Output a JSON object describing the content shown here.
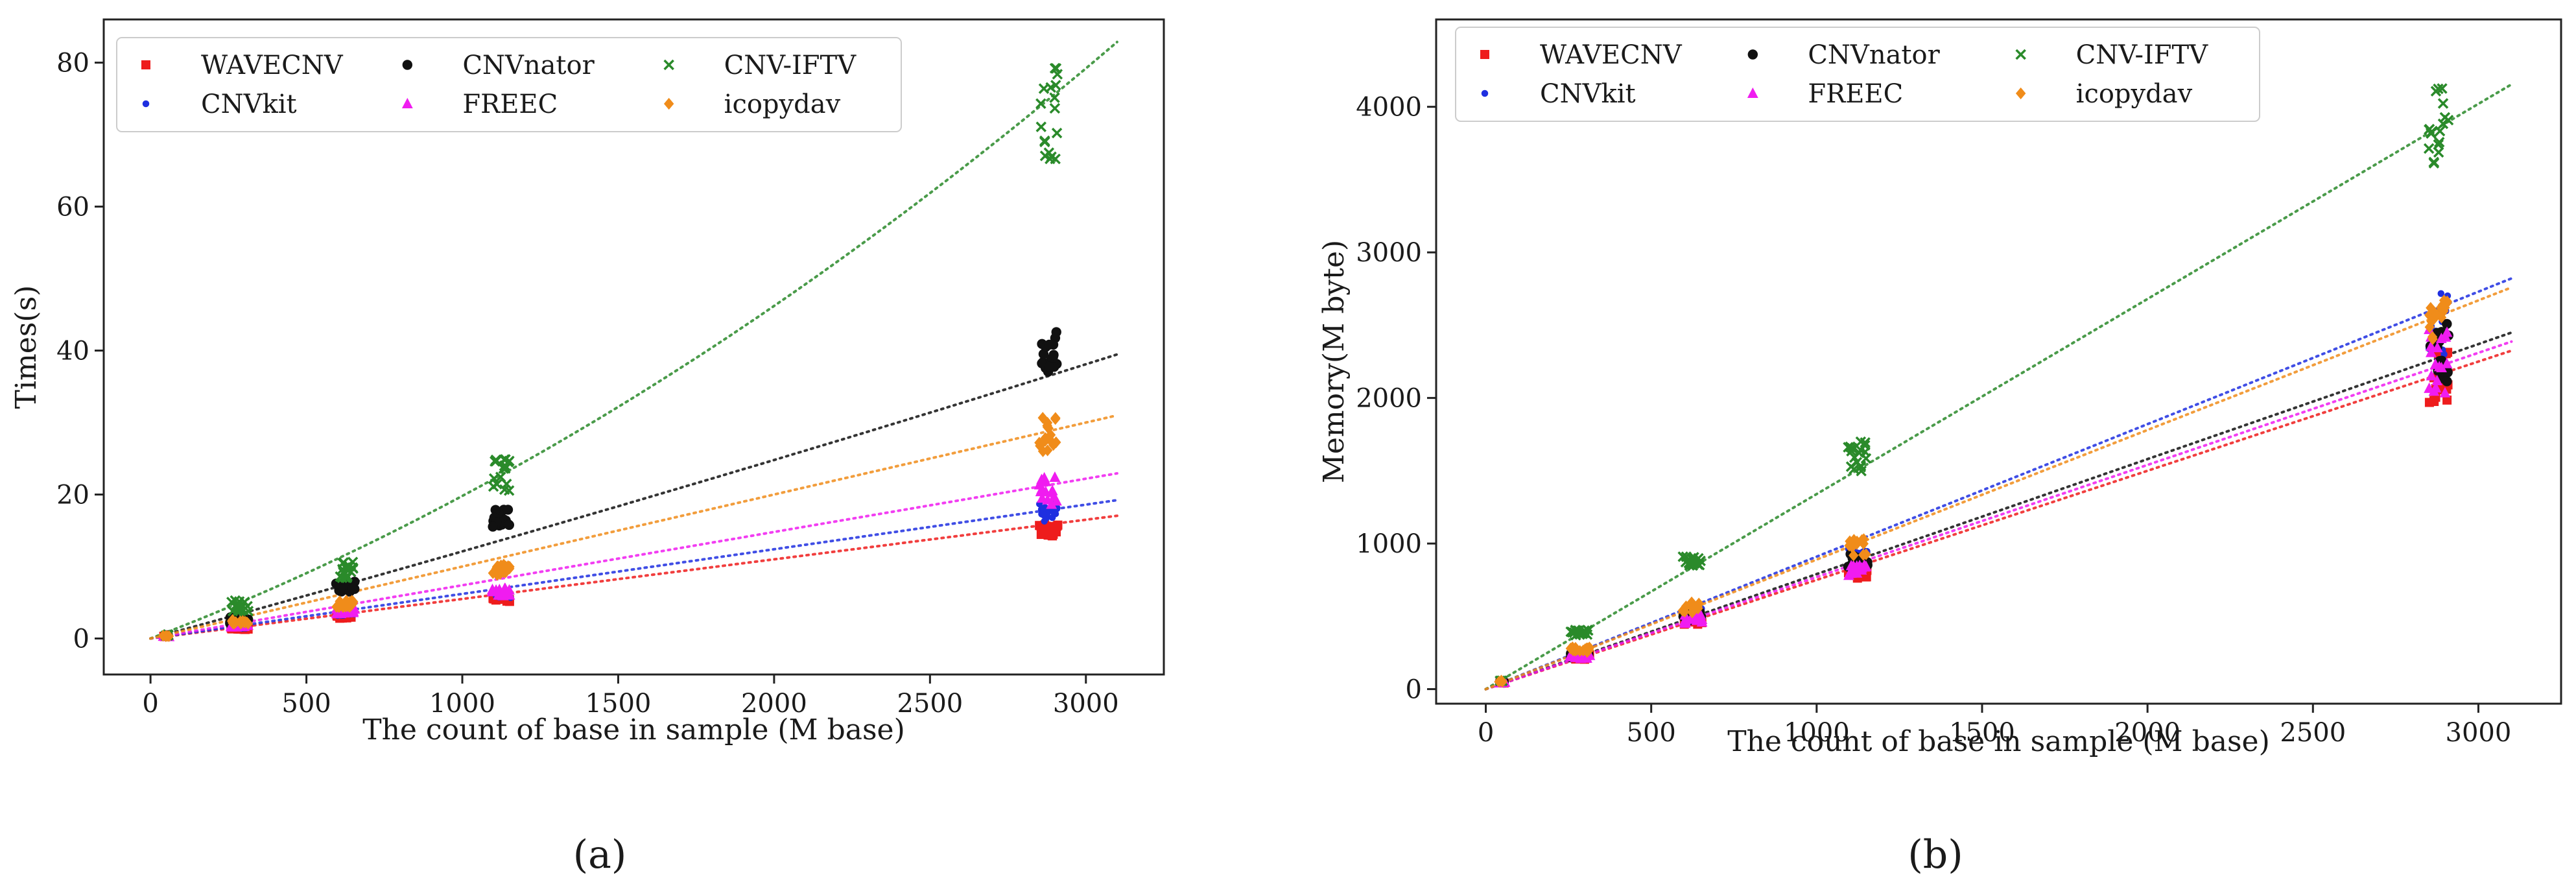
{
  "figure": {
    "panel_labels": [
      "(a)",
      "(b)"
    ]
  },
  "chart_data": [
    {
      "type": "scatter",
      "panel": "a",
      "title": "",
      "xlabel": "The count of base in sample (M base)",
      "ylabel": "Times(s)",
      "xlim": [
        -150,
        3250
      ],
      "ylim": [
        -5,
        86
      ],
      "xticks": [
        0,
        500,
        1000,
        1500,
        2000,
        2500,
        3000
      ],
      "yticks": [
        0,
        20,
        40,
        60,
        80
      ],
      "grid": false,
      "legend_position": "top-left",
      "legend_ncol": 3,
      "x_groups": [
        50,
        285,
        625,
        1125,
        2880
      ],
      "series": [
        {
          "name": "WAVECNV",
          "color": "#ee1c1c",
          "marker": "square",
          "values": [
            0.3,
            1.4,
            3.0,
            5.5,
            15.0
          ],
          "spread": [
            0.05,
            0.15,
            0.3,
            0.4,
            0.8
          ],
          "trend": [
            0.0055,
            0.0
          ]
        },
        {
          "name": "CNVkit",
          "color": "#1f2fe0",
          "marker": "point",
          "values": [
            0.3,
            1.6,
            3.5,
            6.0,
            17.5
          ],
          "spread": [
            0.05,
            0.2,
            0.4,
            0.5,
            1.2
          ],
          "trend": [
            0.0062,
            0.0
          ]
        },
        {
          "name": "CNVnator",
          "color": "#111111",
          "marker": "circle",
          "values": [
            0.4,
            2.5,
            7.5,
            16.5,
            40.0
          ],
          "spread": [
            0.1,
            0.5,
            1.0,
            1.5,
            3.5
          ],
          "trend": [
            0.0118,
            3e-07
          ]
        },
        {
          "name": "FREEC",
          "color": "#f01cf0",
          "marker": "triangle",
          "values": [
            0.3,
            1.8,
            3.8,
            6.5,
            20.5
          ],
          "spread": [
            0.05,
            0.2,
            0.4,
            0.6,
            2.0
          ],
          "trend": [
            0.0074,
            0.0
          ]
        },
        {
          "name": "CNV-IFTV",
          "color": "#2a8a2a",
          "marker": "x",
          "values": [
            0.5,
            4.5,
            9.5,
            22.5,
            73.0
          ],
          "spread": [
            0.1,
            0.8,
            1.2,
            2.5,
            6.5
          ],
          "trend": [
            0.0165,
            3.3e-06
          ]
        },
        {
          "name": "icopydav",
          "color": "#f08c1a",
          "marker": "diamond",
          "values": [
            0.4,
            2.3,
            4.8,
            9.5,
            28.5
          ],
          "spread": [
            0.1,
            0.3,
            0.5,
            0.8,
            2.5
          ],
          "trend": [
            0.01,
            0.0
          ]
        }
      ]
    },
    {
      "type": "scatter",
      "panel": "b",
      "title": "",
      "xlabel": "The count of base in sample (M base)",
      "ylabel": "Memory(M byte)",
      "xlim": [
        -150,
        3250
      ],
      "ylim": [
        -100,
        4600
      ],
      "xticks": [
        0,
        500,
        1000,
        1500,
        2000,
        2500,
        3000
      ],
      "yticks": [
        0,
        1000,
        2000,
        3000,
        4000
      ],
      "grid": false,
      "legend_position": "top-left",
      "legend_ncol": 3,
      "x_groups": [
        50,
        285,
        625,
        1125,
        2880
      ],
      "series": [
        {
          "name": "WAVECNV",
          "color": "#ee1c1c",
          "marker": "square",
          "values": [
            45,
            220,
            470,
            800,
            2150
          ],
          "spread": [
            5,
            15,
            30,
            40,
            200
          ],
          "trend": [
            0.75,
            0.0
          ]
        },
        {
          "name": "CNVkit",
          "color": "#1f2fe0",
          "marker": "point",
          "values": [
            50,
            240,
            520,
            920,
            2450
          ],
          "spread": [
            5,
            15,
            35,
            50,
            300
          ],
          "trend": [
            0.91,
            0.0
          ]
        },
        {
          "name": "CNVnator",
          "color": "#111111",
          "marker": "circle",
          "values": [
            48,
            230,
            500,
            880,
            2350
          ],
          "spread": [
            5,
            15,
            30,
            50,
            250
          ],
          "trend": [
            0.79,
            0.0
          ]
        },
        {
          "name": "FREEC",
          "color": "#f01cf0",
          "marker": "triangle",
          "values": [
            45,
            225,
            480,
            820,
            2250
          ],
          "spread": [
            5,
            15,
            30,
            40,
            220
          ],
          "trend": [
            0.77,
            0.0
          ]
        },
        {
          "name": "CNV-IFTV",
          "color": "#2a8a2a",
          "marker": "x",
          "values": [
            60,
            390,
            870,
            1580,
            3900
          ],
          "spread": [
            5,
            25,
            40,
            120,
            300
          ],
          "trend": [
            1.34,
            0.0
          ]
        },
        {
          "name": "icopydav",
          "color": "#f08c1a",
          "marker": "diamond",
          "values": [
            55,
            270,
            560,
            980,
            2550
          ],
          "spread": [
            5,
            20,
            40,
            70,
            150
          ],
          "trend": [
            0.89,
            0.0
          ]
        }
      ]
    }
  ]
}
